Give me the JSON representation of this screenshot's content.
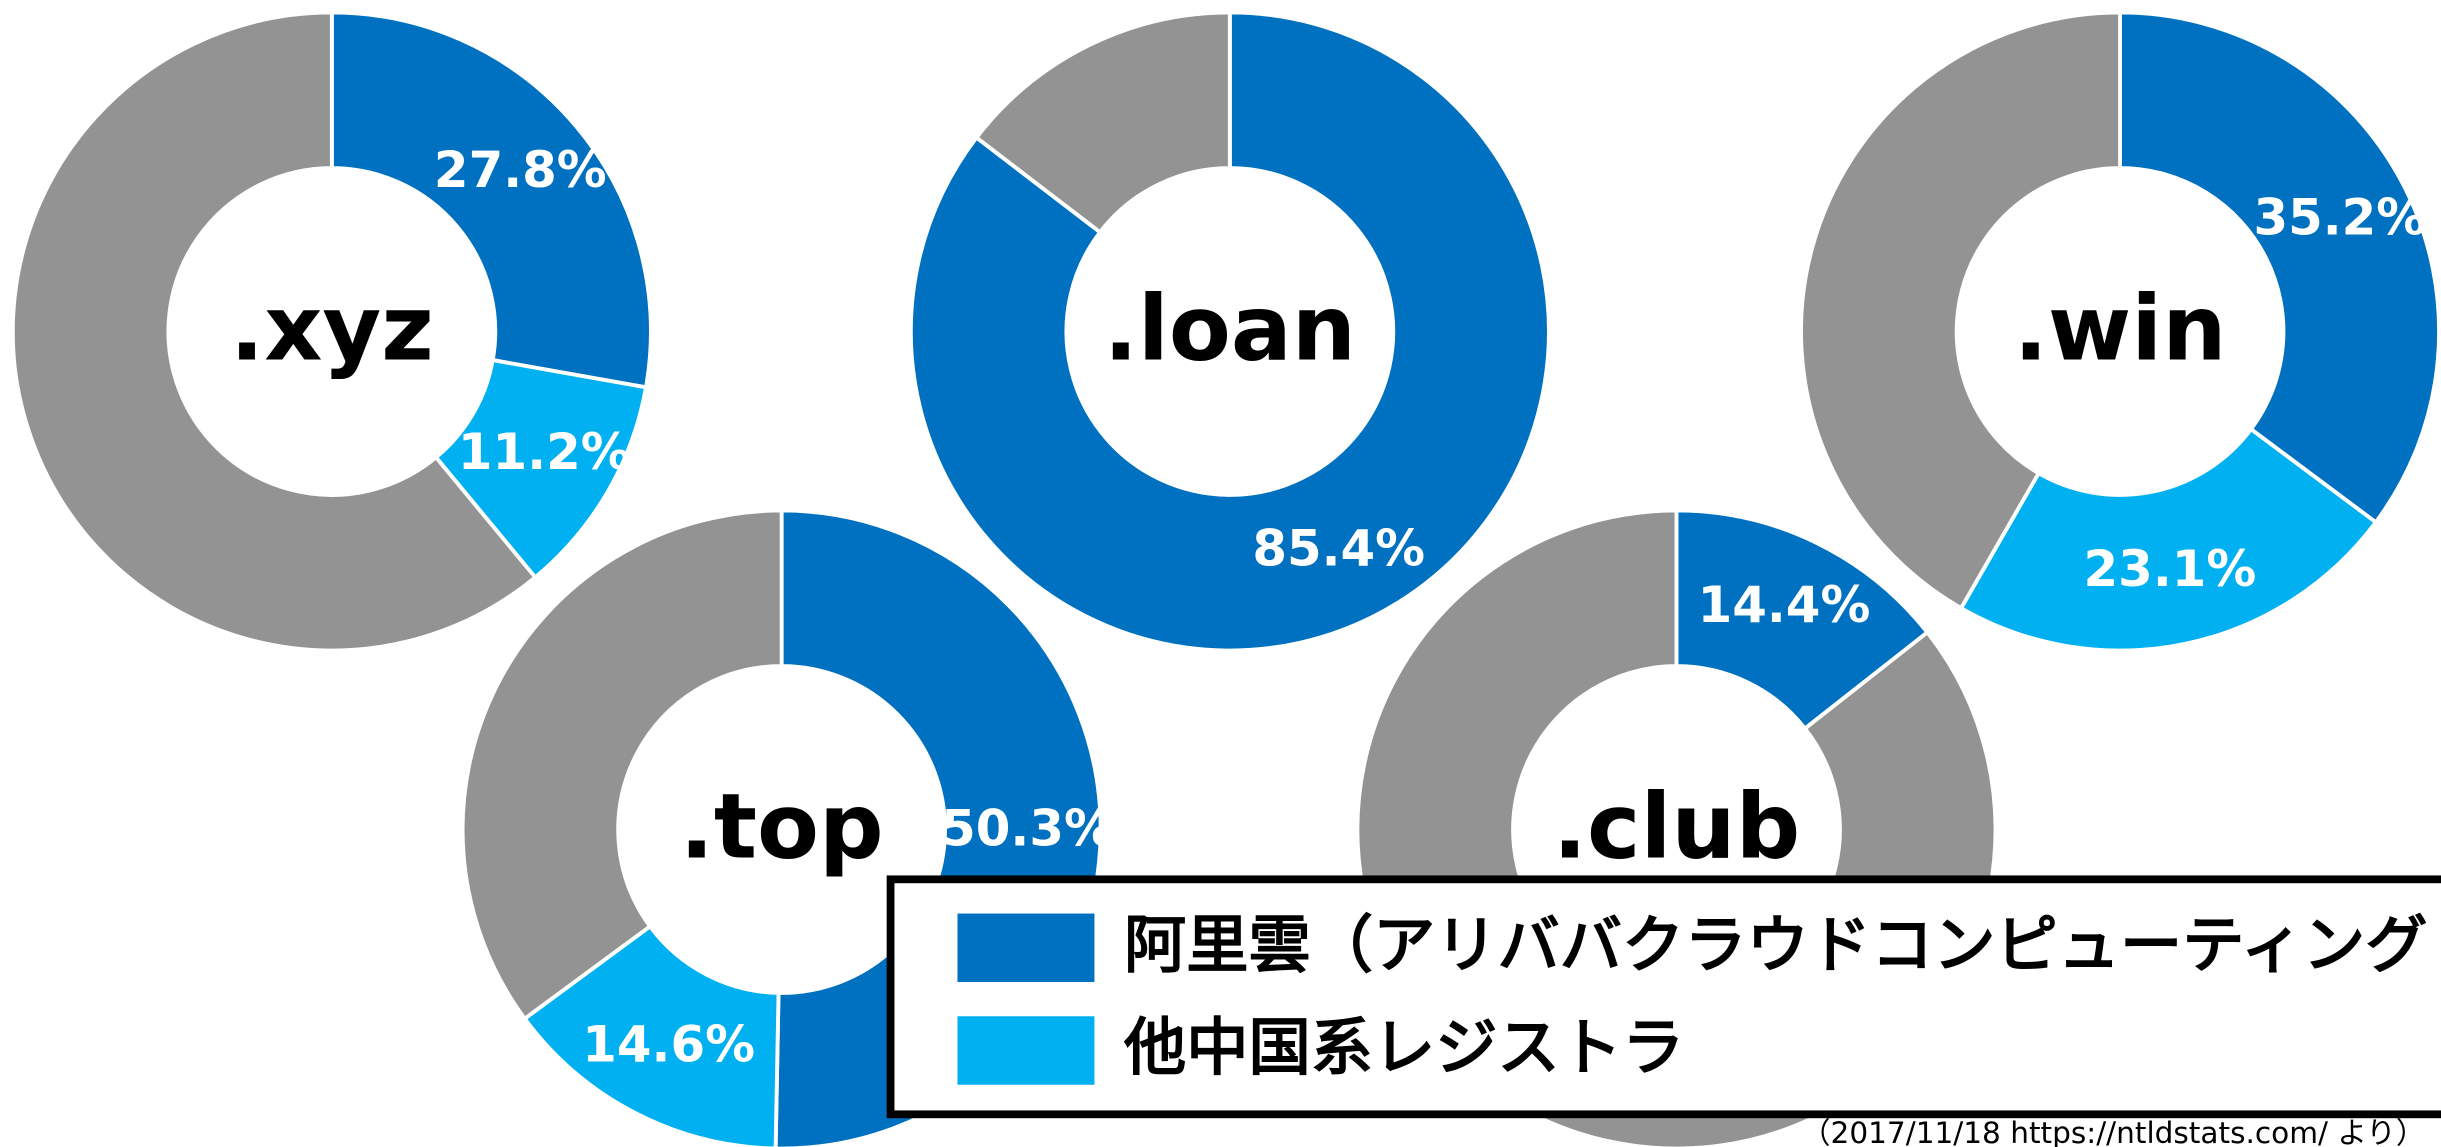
{
  "chart_data": [
    {
      "type": "donut",
      "title": ".xyz",
      "values": [
        27.8,
        11.2,
        61.0
      ],
      "value_labels": [
        "27.8%",
        "11.2%",
        null
      ]
    },
    {
      "type": "donut",
      "title": ".loan",
      "values": [
        85.4,
        0,
        14.6
      ],
      "value_labels": [
        "85.4%",
        null,
        null
      ]
    },
    {
      "type": "donut",
      "title": ".win",
      "values": [
        35.2,
        23.1,
        41.7
      ],
      "value_labels": [
        "35.2%",
        "23.1%",
        null
      ]
    },
    {
      "type": "donut",
      "title": ".top",
      "values": [
        50.3,
        14.6,
        35.1
      ],
      "value_labels": [
        "50.3%",
        "14.6%",
        null
      ]
    },
    {
      "type": "donut",
      "title": ".club",
      "values": [
        14.4,
        0,
        85.6
      ],
      "value_labels": [
        "14.4%",
        null,
        null
      ]
    }
  ],
  "colors": [
    "#0070c0",
    "#00b0f0",
    "#939393"
  ],
  "legend": {
    "items": [
      "阿里雲（アリババクラウドコンピューティング",
      "他中国系レジストラ"
    ]
  },
  "source": "（2017/11/18 https://ntldstats.com/ より）"
}
